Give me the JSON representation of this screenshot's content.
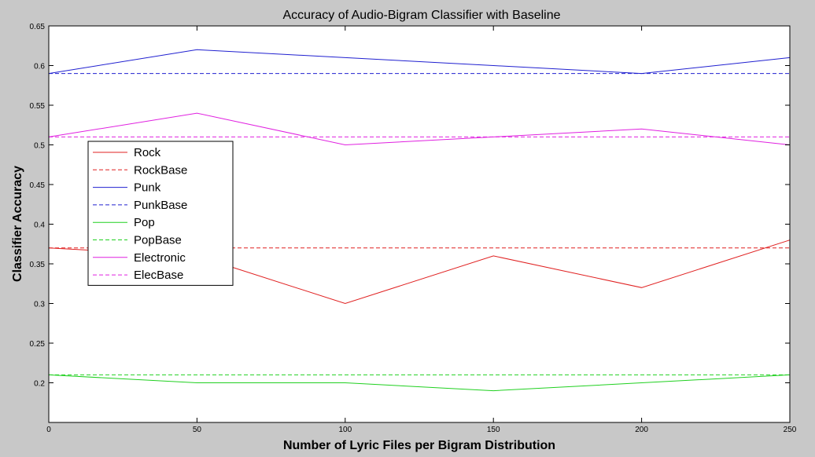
{
  "chart_data": {
    "type": "line",
    "title": "Accuracy of Audio-Bigram Classifier with Baseline",
    "xlabel": "Number of Lyric Files per Bigram Distribution",
    "ylabel": "Classifier Accuracy",
    "x": [
      0,
      50,
      100,
      150,
      200,
      250
    ],
    "xlim": [
      0,
      250
    ],
    "ylim": [
      0.15,
      0.65
    ],
    "xticks": [
      0,
      50,
      100,
      150,
      200,
      250
    ],
    "yticks": [
      0.2,
      0.25,
      0.3,
      0.35,
      0.4,
      0.45,
      0.5,
      0.55,
      0.6,
      0.65
    ],
    "grid": false,
    "legend_position": "middle-left",
    "series": [
      {
        "name": "Rock",
        "color": "#e02020",
        "dash": "solid",
        "values": [
          0.37,
          0.36,
          0.3,
          0.36,
          0.32,
          0.38
        ]
      },
      {
        "name": "RockBase",
        "color": "#e02020",
        "dash": "dashed",
        "values": [
          0.37,
          0.37,
          0.37,
          0.37,
          0.37,
          0.37
        ]
      },
      {
        "name": "Punk",
        "color": "#2020d0",
        "dash": "solid",
        "values": [
          0.59,
          0.62,
          0.61,
          0.6,
          0.59,
          0.61
        ]
      },
      {
        "name": "PunkBase",
        "color": "#2020d0",
        "dash": "dashed",
        "values": [
          0.59,
          0.59,
          0.59,
          0.59,
          0.59,
          0.59
        ]
      },
      {
        "name": "Pop",
        "color": "#20d020",
        "dash": "solid",
        "values": [
          0.21,
          0.2,
          0.2,
          0.19,
          0.2,
          0.21
        ]
      },
      {
        "name": "PopBase",
        "color": "#20d020",
        "dash": "dashed",
        "values": [
          0.21,
          0.21,
          0.21,
          0.21,
          0.21,
          0.21
        ]
      },
      {
        "name": "Electronic",
        "color": "#e020e0",
        "dash": "solid",
        "values": [
          0.51,
          0.54,
          0.5,
          0.51,
          0.52,
          0.5
        ]
      },
      {
        "name": "ElecBase",
        "color": "#e020e0",
        "dash": "dashed",
        "values": [
          0.51,
          0.51,
          0.51,
          0.51,
          0.51,
          0.51
        ]
      }
    ]
  }
}
